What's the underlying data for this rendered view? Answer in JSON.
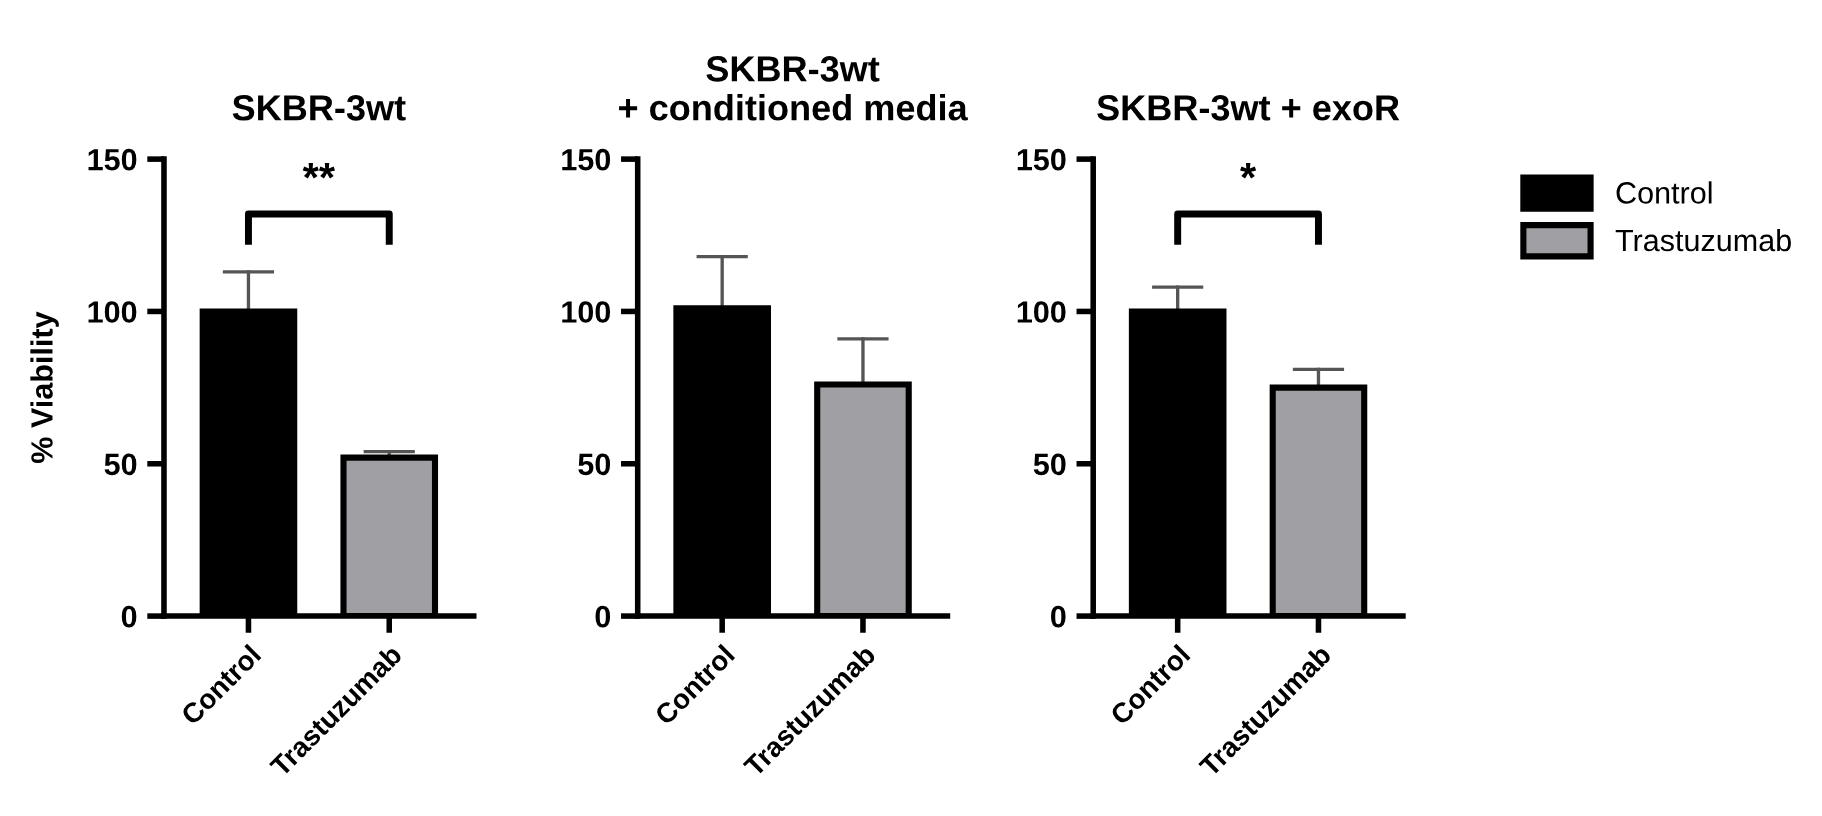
{
  "chart_data": [
    {
      "type": "bar",
      "title": "SKBR-3wt",
      "ylabel": "% Viability",
      "categories": [
        "Control",
        "Trastuzumab"
      ],
      "ylim": [
        0,
        150
      ],
      "yticks": [
        0,
        50,
        100,
        150
      ],
      "annotations": [
        "**"
      ],
      "series": [
        {
          "color": "#000000",
          "values": [
            100,
            null
          ],
          "errors": [
            13,
            null
          ]
        },
        {
          "color": "#a0a0a4",
          "values": [
            null,
            52
          ],
          "errors": [
            null,
            2
          ]
        }
      ]
    },
    {
      "type": "bar",
      "title": "SKBR-3wt\n+ conditioned media",
      "categories": [
        "Control",
        "Trastuzumab"
      ],
      "ylim": [
        0,
        150
      ],
      "yticks": [
        0,
        50,
        100,
        150
      ],
      "series": [
        {
          "color": "#000000",
          "values": [
            101,
            null
          ],
          "errors": [
            17,
            null
          ]
        },
        {
          "color": "#a0a0a4",
          "values": [
            null,
            76
          ],
          "errors": [
            null,
            15
          ]
        }
      ]
    },
    {
      "type": "bar",
      "title": "SKBR-3wt + exoR",
      "categories": [
        "Control",
        "Trastuzumab"
      ],
      "ylim": [
        0,
        150
      ],
      "yticks": [
        0,
        50,
        100,
        150
      ],
      "legend": "right",
      "annotations": [
        "*"
      ],
      "series": [
        {
          "name": "Control",
          "color": "#000000",
          "values": [
            100,
            null
          ],
          "errors": [
            8,
            null
          ]
        },
        {
          "name": "Trastuzumab",
          "color": "#a0a0a4",
          "values": [
            null,
            75
          ],
          "errors": [
            null,
            6
          ]
        }
      ]
    }
  ]
}
